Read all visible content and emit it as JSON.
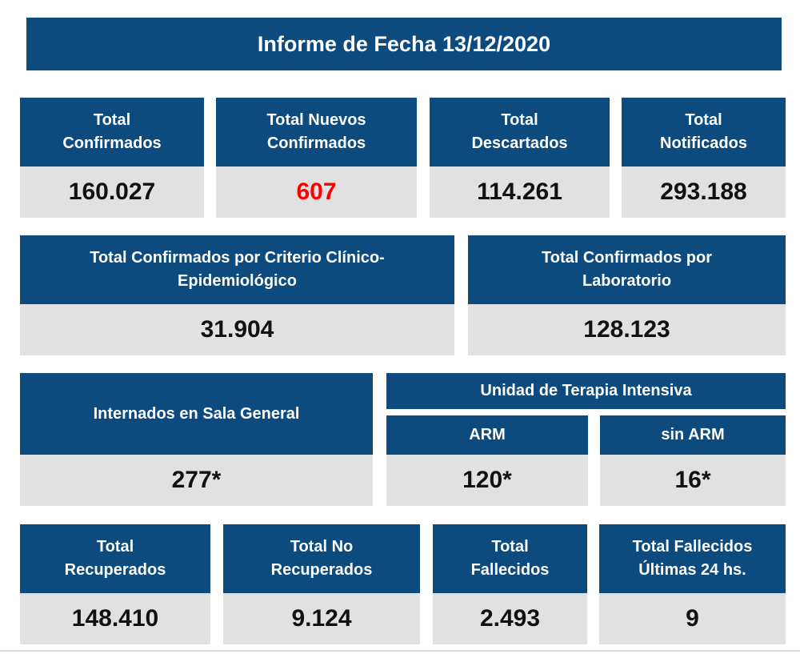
{
  "report": {
    "title": "Informe de Fecha 13/12/2020"
  },
  "row1": [
    {
      "label": "Total\nConfirmados",
      "value": "160.027"
    },
    {
      "label": "Total Nuevos\nConfirmados",
      "value": "607"
    },
    {
      "label": "Total\nDescartados",
      "value": "114.261"
    },
    {
      "label": "Total\nNotificados",
      "value": "293.188"
    }
  ],
  "row2": [
    {
      "label": "Total Confirmados por Criterio Clínico-\nEpidemiológico",
      "value": "31.904"
    },
    {
      "label": "Total Confirmados por\nLaboratorio",
      "value": "128.123"
    }
  ],
  "row3": {
    "sala": {
      "label": "Internados en Sala General",
      "value": "277*"
    },
    "uti": {
      "label": "Unidad de Terapia Intensiva",
      "arm": {
        "label": "ARM",
        "value": "120*"
      },
      "sin_arm": {
        "label": "sin ARM",
        "value": "16*"
      }
    }
  },
  "row4": [
    {
      "label": "Total\nRecuperados",
      "value": "148.410"
    },
    {
      "label": "Total No\nRecuperados",
      "value": "9.124"
    },
    {
      "label": "Total\nFallecidos",
      "value": "2.493"
    },
    {
      "label": "Total Fallecidos\nÚltimas 24 hs.",
      "value": "9"
    }
  ],
  "colors": {
    "header_blue": "#0d4a7e",
    "value_gray": "#e1e1e1",
    "highlight_red": "#ff0000"
  }
}
